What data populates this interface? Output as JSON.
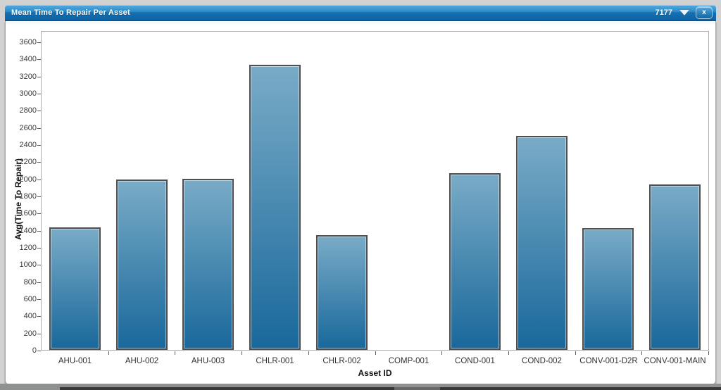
{
  "window": {
    "title": "Mean Time To Repair Per Asset",
    "badge": "7177",
    "close_label": "x"
  },
  "chart_data": {
    "type": "bar",
    "title": "Mean Time To Repair Per Asset",
    "categories": [
      "AHU-001",
      "AHU-002",
      "AHU-003",
      "CHLR-001",
      "CHLR-002",
      "COMP-001",
      "COND-001",
      "COND-002",
      "CONV-001-D2R",
      "CONV-001-MAIN"
    ],
    "values": [
      1430,
      1990,
      2000,
      3330,
      1340,
      0,
      2060,
      2500,
      1420,
      1930
    ],
    "xlabel": "Asset ID",
    "ylabel": "Avg(Time To Repair)",
    "ylim": [
      0,
      3600
    ],
    "y_tick_step": 200,
    "grid": false,
    "legend": false
  },
  "colors": {
    "titlebar_top": "#55aadf",
    "titlebar_bottom": "#0f62a2",
    "bar_fill_top": "#79abc7",
    "bar_fill_bottom": "#19689b",
    "bar_border": "#4e4e4e",
    "frame_bg": "#d2d2d2",
    "panel_bg": "#ffffff",
    "axis_line": "#ababab",
    "tick_text": "#3a3a3a"
  }
}
